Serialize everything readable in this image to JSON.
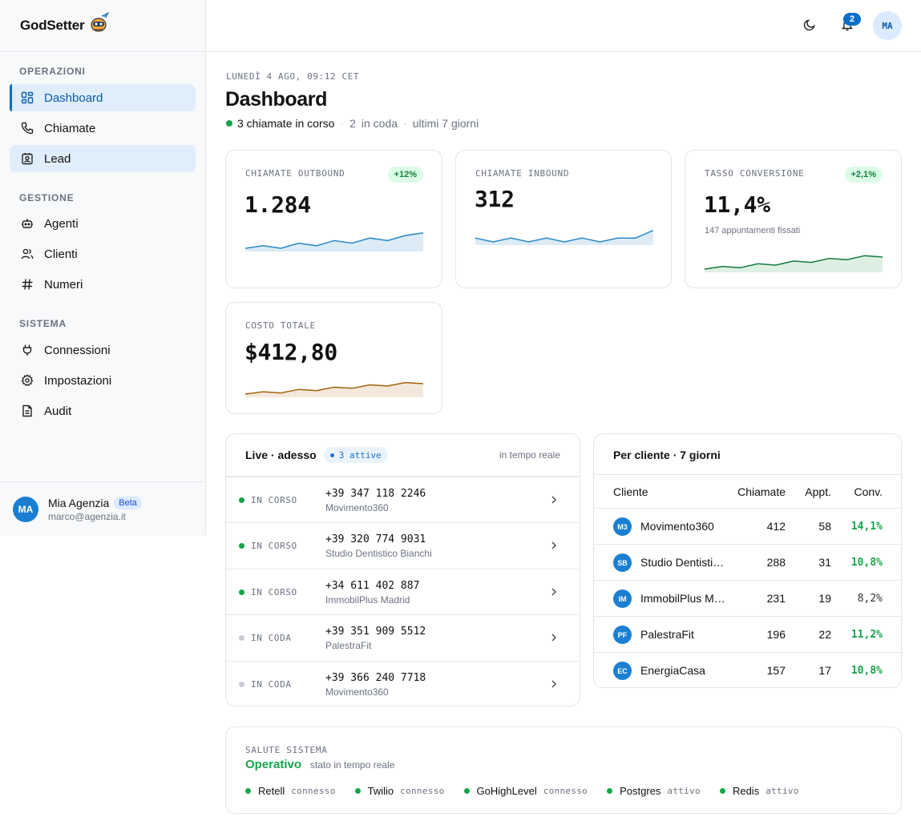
{
  "brand": {
    "name": "GodSetter"
  },
  "sidebar": {
    "sections": [
      {
        "title": "OPERAZIONI"
      },
      {
        "title": "GESTIONE"
      },
      {
        "title": "SISTEMA"
      }
    ],
    "items": [
      {
        "label": "Dashboard",
        "icon": "grid-icon",
        "active": true
      },
      {
        "label": "Chiamate",
        "icon": "phone-icon"
      },
      {
        "label": "Lead",
        "icon": "contact-card-icon",
        "highlighted": true
      },
      {
        "label": "Agenti",
        "icon": "bot-icon"
      },
      {
        "label": "Clienti",
        "icon": "users-icon"
      },
      {
        "label": "Numeri",
        "icon": "hash-icon"
      },
      {
        "label": "Connessioni",
        "icon": "plug-icon"
      },
      {
        "label": "Impostazioni",
        "icon": "gear-icon"
      },
      {
        "label": "Audit",
        "icon": "file-icon"
      }
    ],
    "footer": {
      "initials": "MA",
      "name": "Mia Agenzia",
      "badge": "Beta",
      "email": "marco@agenzia.it"
    }
  },
  "topbar": {
    "notifications": "2",
    "user_initials": "MA"
  },
  "header": {
    "datestamp": "LUNEDÌ 4 AGO, 09:12 CET",
    "title": "Dashboard",
    "active_calls": "3 chiamate in corso",
    "queue_count": "2",
    "queue_label": "in coda",
    "period": "ultimi 7 giorni"
  },
  "kpis": [
    {
      "label": "CHIAMATE OUTBOUND",
      "value": "1.284",
      "delta": "+12%",
      "spark": [
        3,
        4,
        3,
        5,
        4,
        6,
        5,
        7,
        6,
        8,
        9
      ],
      "color": "#2b8ac9",
      "fill": "#dcebf6"
    },
    {
      "label": "CHIAMATE INBOUND",
      "value": "312",
      "delta": "",
      "spark": [
        5,
        4,
        5,
        4,
        5,
        4,
        5,
        4,
        5,
        5,
        7
      ],
      "color": "#2b8ac9",
      "fill": "#dcebf6"
    },
    {
      "label": "TASSO CONVERSIONE",
      "value": "11,4%",
      "delta": "+2,1%",
      "note": "147 appuntamenti fissati",
      "spark": [
        3,
        4,
        3.5,
        5,
        4.5,
        6,
        5.5,
        7,
        6.5,
        8,
        7.5
      ],
      "color": "#137a3e",
      "fill": "#deefe4"
    },
    {
      "label": "COSTO TOTALE",
      "value": "$412,80",
      "delta": "",
      "spark": [
        3,
        4,
        3.5,
        5,
        4.5,
        6,
        5.5,
        7,
        6.5,
        8,
        7.5
      ],
      "color": "#a1620b",
      "fill": "#f4e8dc"
    }
  ],
  "live": {
    "title": "Live · adesso",
    "badge": "3 attive",
    "realtime": "in tempo reale",
    "rows": [
      {
        "status": "IN CORSO",
        "active": true,
        "phone": "+39 347 118 2246",
        "client": "Movimento360"
      },
      {
        "status": "IN CORSO",
        "active": true,
        "phone": "+39 320 774 9031",
        "client": "Studio Dentistico Bianchi"
      },
      {
        "status": "IN CORSO",
        "active": true,
        "phone": "+34 611 402 887",
        "client": "ImmobilPlus Madrid"
      },
      {
        "status": "IN CODA",
        "active": false,
        "phone": "+39 351 909 5512",
        "client": "PalestraFit"
      },
      {
        "status": "IN CODA",
        "active": false,
        "phone": "+39 366 240 7718",
        "client": "Movimento360"
      }
    ]
  },
  "per_cliente": {
    "title": "Per cliente · 7 giorni",
    "columns": [
      "Cliente",
      "Chiamate",
      "Appt.",
      "Conv."
    ],
    "rows": [
      {
        "initials": "M3",
        "name": "Movimento360",
        "calls": "412",
        "appts": "58",
        "conv": "14,1%",
        "good": true
      },
      {
        "initials": "SB",
        "name": "Studio Dentisti…",
        "calls": "288",
        "appts": "31",
        "conv": "10,8%",
        "good": true
      },
      {
        "initials": "IM",
        "name": "ImmobilPlus M…",
        "calls": "231",
        "appts": "19",
        "conv": "8,2%",
        "good": false
      },
      {
        "initials": "PF",
        "name": "PalestraFit",
        "calls": "196",
        "appts": "22",
        "conv": "11,2%",
        "good": true
      },
      {
        "initials": "EC",
        "name": "EnergiaCasa",
        "calls": "157",
        "appts": "17",
        "conv": "10,8%",
        "good": true
      }
    ]
  },
  "health": {
    "label": "SALUTE SISTEMA",
    "status": "Operativo",
    "note": "stato in tempo reale",
    "services": [
      {
        "name": "Retell",
        "state": "connesso"
      },
      {
        "name": "Twilio",
        "state": "connesso"
      },
      {
        "name": "GoHighLevel",
        "state": "connesso"
      },
      {
        "name": "Postgres",
        "state": "attivo"
      },
      {
        "name": "Redis",
        "state": "attivo"
      }
    ]
  }
}
